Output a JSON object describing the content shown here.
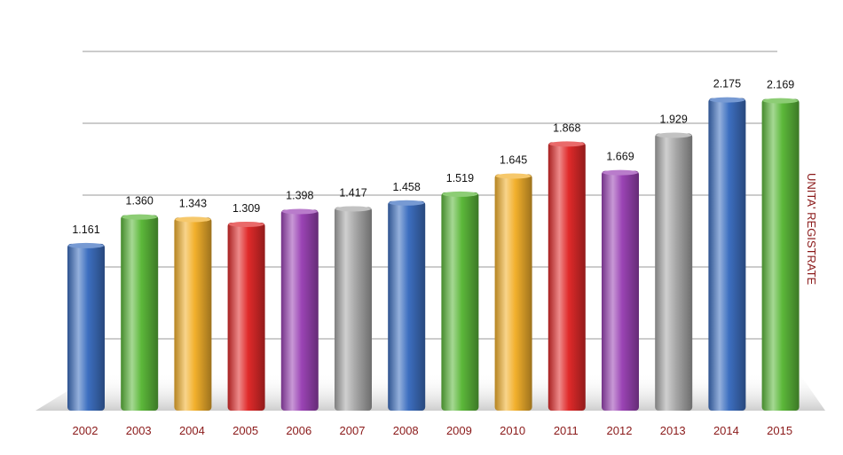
{
  "chart_data": {
    "type": "bar",
    "categories": [
      "2002",
      "2003",
      "2004",
      "2005",
      "2006",
      "2007",
      "2008",
      "2009",
      "2010",
      "2011",
      "2012",
      "2013",
      "2014",
      "2015"
    ],
    "values": [
      1161,
      1360,
      1343,
      1309,
      1398,
      1417,
      1458,
      1519,
      1645,
      1868,
      1669,
      1929,
      2175,
      2169
    ],
    "value_labels": [
      "1.161",
      "1.360",
      "1.343",
      "1.309",
      "1.398",
      "1.417",
      "1.458",
      "1.519",
      "1.645",
      "1.868",
      "1.669",
      "1.929",
      "2.175",
      "2.169"
    ],
    "bar_colors": [
      "#3d6fc0",
      "#5cb83a",
      "#f2b02c",
      "#e02a2a",
      "#9b44b5",
      "#a8a8a8",
      "#3d6fc0",
      "#5cb83a",
      "#f2b02c",
      "#e02a2a",
      "#9b44b5",
      "#a8a8a8",
      "#3d6fc0",
      "#5cb83a"
    ],
    "ylabel": "UNITA' REGISTRATE",
    "xlabel": "",
    "title": "",
    "ylim": [
      0,
      2500
    ],
    "gridlines": [
      500,
      1000,
      1500,
      2000,
      2500
    ],
    "grid": true,
    "legend": "none"
  }
}
